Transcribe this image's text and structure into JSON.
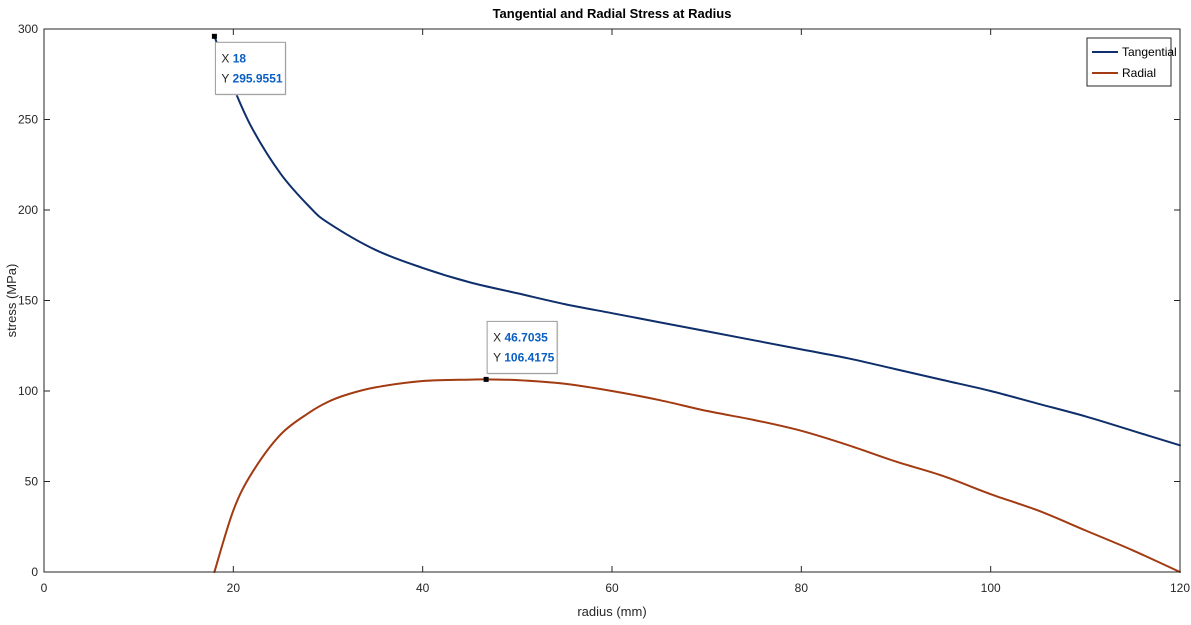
{
  "chart_data": {
    "type": "line",
    "title": "Tangential and Radial Stress at Radius",
    "xlabel": "radius (mm)",
    "ylabel": "stress (MPa)",
    "xlim": [
      0,
      120
    ],
    "ylim": [
      0,
      300
    ],
    "xticks": [
      0,
      20,
      40,
      60,
      80,
      100,
      120
    ],
    "xtick_labels": [
      "0",
      "20",
      "40",
      "60",
      "80",
      "100",
      "120"
    ],
    "yticks": [
      0,
      50,
      100,
      150,
      200,
      250,
      300
    ],
    "ytick_labels": [
      "0",
      "50",
      "100",
      "150",
      "200",
      "250",
      "300"
    ],
    "grid": false,
    "legend_position": "top-right",
    "series": [
      {
        "name": "Tangential",
        "color": "#0e2f6b",
        "x": [
          18,
          20,
          22,
          25,
          28,
          30,
          35,
          40,
          45,
          50,
          55,
          60,
          65,
          70,
          75,
          80,
          85,
          90,
          95,
          100,
          105,
          110,
          115,
          120
        ],
        "y": [
          296,
          268,
          245,
          220,
          202,
          193,
          178,
          168,
          160,
          154,
          148,
          143,
          138,
          133,
          128,
          123,
          118,
          112,
          106,
          100,
          93,
          86,
          78,
          70
        ]
      },
      {
        "name": "Radial",
        "color": "#a23a12",
        "x": [
          18,
          20,
          22,
          25,
          28,
          30,
          32,
          35,
          40,
          45,
          46.7,
          50,
          55,
          60,
          65,
          70,
          75,
          80,
          85,
          90,
          95,
          100,
          105,
          110,
          115,
          120
        ],
        "y": [
          0,
          34,
          55,
          76,
          88,
          94,
          98,
          102,
          105.5,
          106.3,
          106.4,
          106,
          104,
          100,
          95,
          89,
          84,
          78,
          70,
          61,
          53,
          43,
          34,
          23,
          12,
          0
        ]
      }
    ],
    "datatips": [
      {
        "x_label": "X",
        "x_value": "18",
        "y_label": "Y",
        "y_value": "295.9551",
        "x": 18,
        "y": 295.9551
      },
      {
        "x_label": "X",
        "x_value": "46.7035",
        "y_label": "Y",
        "y_value": "106.4175",
        "x": 46.7035,
        "y": 106.4175
      }
    ]
  }
}
